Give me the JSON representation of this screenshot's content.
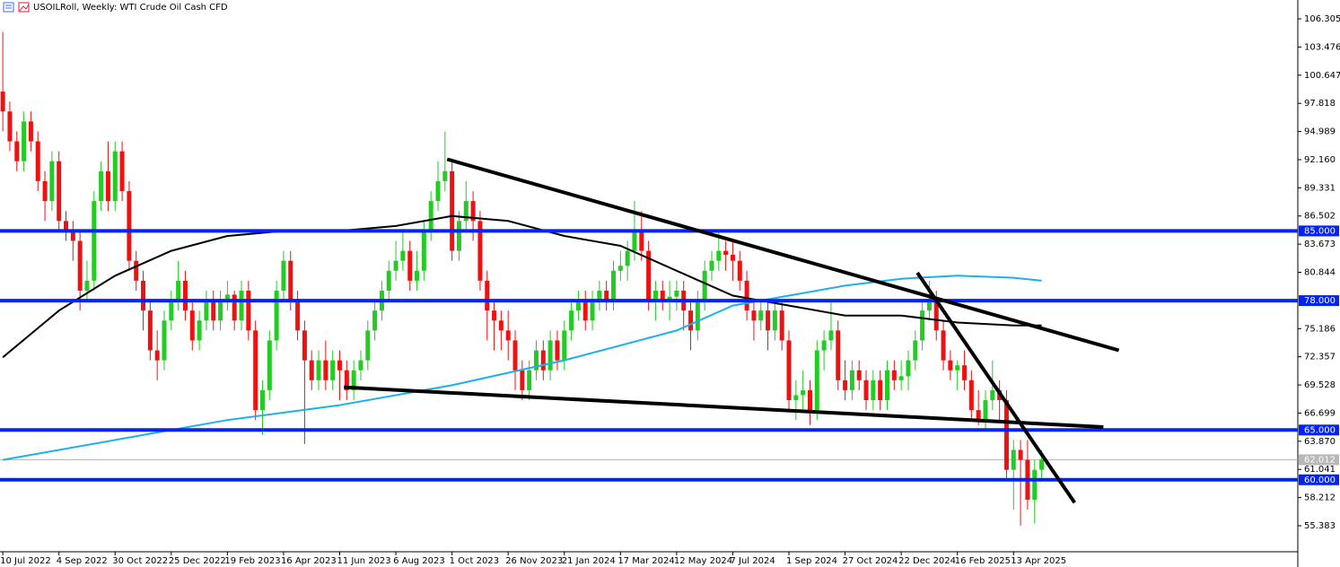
{
  "chart_data": {
    "type": "candlestick",
    "title": "USOILRoll, Weekly:  WTI Crude Oil Cash CFD",
    "categories": [
      "10 Jul 2022",
      null,
      null,
      null,
      null,
      null,
      null,
      null,
      "4 Sep 2022",
      null,
      null,
      null,
      null,
      null,
      null,
      null,
      "30 Oct 2022",
      null,
      null,
      null,
      null,
      null,
      null,
      null,
      "25 Dec 2022",
      null,
      null,
      null,
      null,
      null,
      null,
      null,
      "19 Feb 2023",
      null,
      null,
      null,
      null,
      null,
      null,
      null,
      "16 Apr 2023",
      null,
      null,
      null,
      null,
      null,
      null,
      null,
      "11 Jun 2023",
      null,
      null,
      null,
      null,
      null,
      null,
      null,
      "6 Aug 2023",
      null,
      null,
      null,
      null,
      null,
      null,
      null,
      "1 Oct 2023",
      null,
      null,
      null,
      null,
      null,
      null,
      null,
      "26 Nov 2023",
      null,
      null,
      null,
      null,
      null,
      null,
      null,
      "21 Jan 2024",
      null,
      null,
      null,
      null,
      null,
      null,
      null,
      "17 Mar 2024",
      null,
      null,
      null,
      null,
      null,
      null,
      null,
      "12 May 2024",
      null,
      null,
      null,
      null,
      null,
      null,
      null,
      "7 Jul 2024",
      null,
      null,
      null,
      null,
      null,
      null,
      null,
      "1 Sep 2024",
      null,
      null,
      null,
      null,
      null,
      null,
      null,
      "27 Oct 2024",
      null,
      null,
      null,
      null,
      null,
      null,
      null,
      "22 Dec 2024",
      null,
      null,
      null,
      null,
      null,
      null,
      null,
      "16 Feb 2025",
      null,
      null,
      null,
      null,
      null,
      null,
      null,
      "13 Apr 2025",
      null,
      null,
      null,
      null
    ],
    "open": [
      99,
      97,
      94,
      92,
      96,
      94,
      90,
      88,
      92,
      86,
      85,
      84,
      79,
      80,
      88,
      91,
      88,
      93,
      89,
      82,
      80,
      77,
      73,
      72,
      76,
      78,
      80,
      77,
      74,
      76,
      78,
      76,
      78,
      78.6,
      76,
      79,
      75,
      67,
      69,
      74,
      79,
      82,
      78,
      75,
      72,
      70,
      72,
      70,
      72,
      71,
      69,
      71,
      72,
      75,
      77,
      79,
      81,
      82,
      83,
      80,
      81,
      85,
      88,
      90,
      91,
      83,
      86,
      88,
      86,
      80,
      77,
      76,
      75,
      74,
      71,
      69,
      71,
      73,
      71,
      74,
      72,
      75,
      77,
      78,
      76,
      78,
      79,
      78,
      81,
      81.5,
      83,
      85,
      83,
      78,
      79,
      78,
      78.4,
      79,
      77,
      75,
      78,
      81,
      82,
      83,
      82.6,
      82,
      80,
      77,
      76,
      77,
      75,
      77,
      74,
      68,
      68.5,
      69,
      67,
      73,
      74,
      75,
      70,
      69,
      71,
      70,
      68,
      70,
      68,
      71,
      70,
      70.4,
      72,
      74,
      77,
      78,
      75,
      72,
      71,
      71.5,
      70,
      67,
      66,
      68,
      69,
      68,
      61,
      63,
      62,
      58,
      61
    ],
    "high": [
      105,
      98,
      95,
      97,
      97,
      95,
      91,
      93,
      93,
      87,
      86,
      85,
      82,
      89,
      92,
      94,
      94,
      94,
      90,
      83,
      81,
      78,
      75,
      77,
      79,
      82,
      81,
      78,
      77,
      79,
      79,
      79,
      80,
      79,
      80,
      80,
      76,
      70,
      75,
      80,
      83,
      83,
      79,
      76,
      73,
      73,
      74,
      73,
      73,
      72,
      72,
      73,
      76,
      78,
      80,
      82,
      84,
      85,
      84,
      83,
      86,
      89,
      92,
      95,
      92,
      87,
      90,
      89,
      87,
      81,
      78,
      77,
      77,
      75,
      72,
      72,
      74,
      74,
      75,
      75,
      76,
      78,
      79,
      79,
      79,
      80,
      80,
      82,
      83,
      84,
      88,
      87,
      84,
      80,
      80,
      80,
      80,
      80,
      78,
      79,
      82,
      83,
      85,
      84,
      84,
      83,
      81,
      78,
      78,
      78,
      78,
      78,
      75,
      70,
      71,
      70,
      74,
      75,
      78,
      76,
      72,
      72,
      72,
      71,
      71,
      71,
      72,
      72,
      72,
      73,
      75,
      78,
      80,
      79,
      76,
      73,
      72,
      73,
      71,
      69,
      69,
      72,
      70,
      69,
      64,
      64,
      64,
      62,
      63
    ],
    "low": [
      95,
      93,
      91,
      91,
      93,
      89,
      86,
      87,
      85,
      84,
      82,
      77,
      78,
      79,
      87,
      87,
      87,
      88,
      81,
      79,
      75,
      72,
      70,
      71,
      75,
      77,
      76,
      73,
      73,
      75,
      75,
      75,
      77,
      75,
      75,
      74,
      66,
      64.5,
      68,
      73,
      78,
      77,
      74,
      63.6,
      69,
      69,
      69,
      69,
      68,
      68,
      68,
      70,
      71,
      74,
      76,
      78,
      80,
      81,
      79,
      79,
      80,
      84,
      87,
      89,
      82,
      82,
      85,
      84,
      79,
      74,
      73,
      73,
      72,
      69,
      68,
      68,
      70,
      70,
      70,
      71,
      71,
      74,
      76,
      75,
      75,
      77,
      77,
      77,
      80,
      80,
      82,
      82,
      77,
      76,
      77,
      76,
      77,
      75,
      73,
      74,
      77,
      80,
      81,
      81,
      80,
      79,
      76,
      74,
      75,
      73,
      74,
      73,
      67,
      66,
      67,
      65.5,
      66,
      71,
      73,
      69,
      68,
      68,
      69,
      67,
      67,
      67,
      67,
      69,
      69,
      69,
      71,
      73,
      76,
      74,
      71,
      70,
      69,
      69,
      66,
      65.5,
      65,
      67,
      66,
      60,
      57,
      55.4,
      57,
      55.6,
      60
    ],
    "close": [
      97,
      94,
      92,
      96,
      94,
      90,
      88,
      92,
      86,
      85,
      84,
      79,
      80,
      88,
      91,
      88,
      93,
      89,
      82,
      80,
      77,
      73,
      72,
      76,
      78,
      80,
      77,
      74,
      76,
      78,
      76,
      78,
      78.6,
      76,
      79,
      75,
      67,
      69,
      74,
      79,
      82,
      78,
      75,
      72,
      70,
      72,
      70,
      72,
      71,
      69,
      71,
      72,
      75,
      77,
      79,
      81,
      82,
      83,
      80,
      81,
      85,
      88,
      90,
      91,
      83,
      86,
      88,
      86,
      80,
      77,
      76,
      75,
      74,
      71,
      69,
      71,
      73,
      71,
      74,
      72,
      75,
      77,
      78,
      76,
      78,
      79,
      78,
      81,
      81.5,
      83,
      85,
      83,
      78,
      79,
      78,
      78.4,
      79,
      77,
      75,
      78,
      81,
      82,
      83,
      82.6,
      82,
      80,
      77,
      76,
      77,
      75,
      77,
      74,
      68,
      68.5,
      69,
      67,
      73,
      74,
      75,
      70,
      69,
      71,
      70,
      68,
      70,
      68,
      71,
      70,
      70.4,
      72,
      74,
      77,
      78,
      75,
      72,
      71,
      71.5,
      70,
      67,
      66,
      68,
      69,
      68,
      61,
      63,
      62,
      58,
      61,
      62.012
    ],
    "up_color": "#22cc22",
    "down_color": "#ee1111",
    "moving_averages": [
      {
        "color": "#000000",
        "x": [
          0,
          8,
          16,
          24,
          32,
          40,
          48,
          56,
          64,
          72,
          80,
          88,
          96,
          104,
          112,
          120,
          128,
          136,
          144,
          148
        ],
        "values": [
          72.3,
          77,
          80.5,
          83,
          84.5,
          85,
          85,
          85.5,
          86.5,
          86,
          84.5,
          83.5,
          81,
          78.5,
          77.5,
          76.5,
          76.5,
          75.8,
          75.5,
          75.5
        ]
      },
      {
        "color": "#1fb0ea",
        "x": [
          0,
          16,
          32,
          48,
          64,
          80,
          96,
          104,
          112,
          120,
          128,
          136,
          144,
          148
        ],
        "values": [
          62,
          64,
          66,
          67.5,
          69.5,
          72,
          75,
          77.5,
          78.5,
          79.5,
          80.2,
          80.5,
          80.3,
          80
        ]
      }
    ],
    "trendlines": [
      {
        "color": "#000000",
        "x": [
          63.3,
          159
        ],
        "values": [
          92.2,
          73
        ]
      },
      {
        "color": "#000000",
        "x": [
          48.6,
          156.8
        ],
        "values": [
          69.3,
          65.3
        ]
      },
      {
        "color": "#000000",
        "x": [
          130.3,
          152.7
        ],
        "values": [
          80.8,
          57.7
        ]
      }
    ],
    "levels": [
      {
        "value": 85,
        "label": "85.000"
      },
      {
        "value": 78,
        "label": "78.000"
      },
      {
        "value": 65,
        "label": "65.000"
      },
      {
        "value": 60,
        "label": "60.000"
      }
    ],
    "level_color": "#0022ff",
    "last_price": {
      "value": 62.012,
      "label": "62.012"
    },
    "xlim": [
      -0.4,
      184.5
    ],
    "ylim": [
      52.77,
      108.2
    ],
    "yticks": [
      106.305,
      103.476,
      100.647,
      97.818,
      94.989,
      {
        "value": 92.16,
        "label": "92.160"
      },
      89.331,
      86.502,
      83.673,
      80.844,
      75.186,
      72.357,
      69.528,
      66.699,
      {
        "value": 63.87,
        "label": "63.870"
      },
      61.041,
      58.212,
      55.383
    ]
  }
}
